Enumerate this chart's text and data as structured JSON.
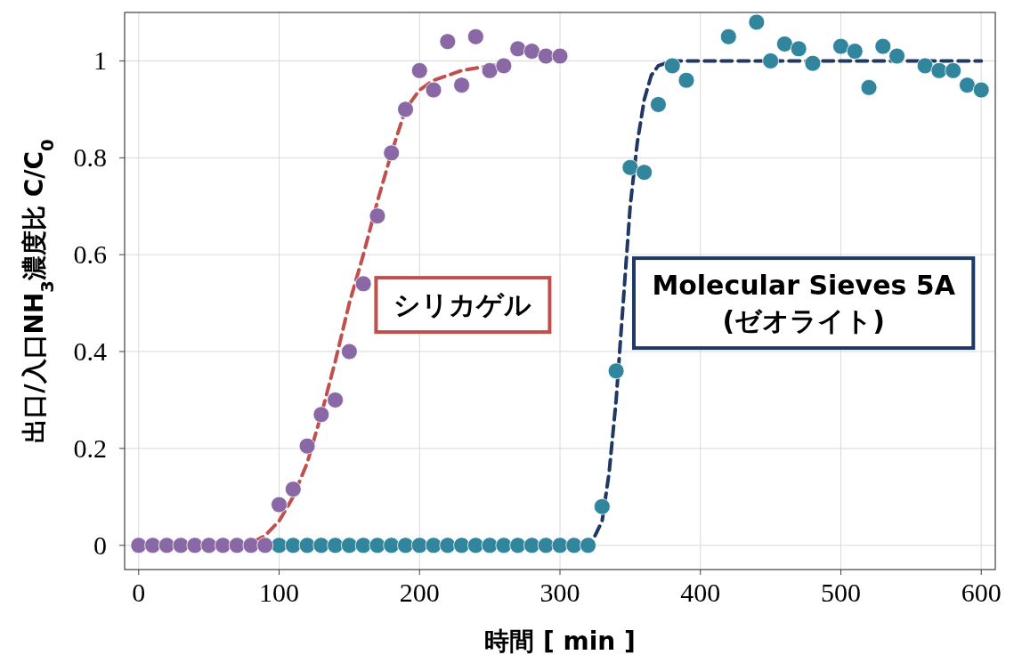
{
  "chart_data": {
    "type": "scatter",
    "xlabel": "時間 [ min ]",
    "ylabel": "出口/入口NH$_{3}$濃度比 C/C$_{0}$",
    "xlim": [
      -10,
      610
    ],
    "ylim": [
      -0.05,
      1.1
    ],
    "xticks": [
      0,
      100,
      200,
      300,
      400,
      500,
      600
    ],
    "yticks": [
      0,
      {
        "value": 0.2,
        "label": "0.2"
      },
      {
        "value": 0.4,
        "label": "0.4"
      },
      {
        "value": 0.6,
        "label": "0.6"
      },
      {
        "value": 0.8,
        "label": "0.8"
      },
      1
    ],
    "grid": true,
    "series": [
      {
        "type": "line",
        "name": "シリカゲル",
        "color": "#c0504d",
        "line_style": "dashed",
        "x": [
          70,
          80,
          90,
          100,
          110,
          120,
          130,
          140,
          150,
          160,
          170,
          180,
          190,
          200,
          210,
          230,
          260
        ],
        "values": [
          0,
          0.005,
          0.02,
          0.05,
          0.1,
          0.17,
          0.27,
          0.38,
          0.5,
          0.6,
          0.71,
          0.81,
          0.9,
          0.94,
          0.96,
          0.98,
          0.995
        ]
      },
      {
        "type": "line",
        "name": "Molecular Sieves 5A\n(ゼオライト)",
        "color": "#1f3864",
        "line_style": "dashed",
        "x": [
          315,
          325,
          330,
          335,
          340,
          345,
          350,
          355,
          360,
          365,
          370,
          380,
          600
        ],
        "values": [
          0,
          0.02,
          0.05,
          0.15,
          0.3,
          0.5,
          0.7,
          0.83,
          0.92,
          0.97,
          0.99,
          1.0,
          1.0
        ]
      },
      {
        "color": "#31859c",
        "marker": "circle",
        "x": [
          100,
          110,
          120,
          130,
          140,
          150,
          160,
          170,
          180,
          190,
          200,
          210,
          220,
          230,
          240,
          250,
          260,
          270,
          280,
          290,
          300,
          310,
          320,
          330,
          340,
          350,
          360,
          370,
          380,
          390,
          420,
          440,
          450,
          460,
          470,
          480,
          500,
          510,
          520,
          530,
          540,
          560,
          570,
          580,
          590,
          600
        ],
        "values": [
          0,
          0,
          0,
          0,
          0,
          0,
          0,
          0,
          0,
          0,
          0,
          0,
          0,
          0,
          0,
          0,
          0,
          0,
          0,
          0,
          0,
          0,
          0,
          0.08,
          0.36,
          0.78,
          0.77,
          0.91,
          0.99,
          0.96,
          1.05,
          1.08,
          1.0,
          1.035,
          1.025,
          0.995,
          1.03,
          1.02,
          0.945,
          1.03,
          1.01,
          0.99,
          0.98,
          0.98,
          0.95,
          0.94
        ]
      },
      {
        "color": "#8a68a6",
        "marker": "circle",
        "x": [
          0,
          10,
          20,
          30,
          40,
          50,
          60,
          70,
          80,
          90,
          100,
          110,
          120,
          130,
          140,
          150,
          160,
          170,
          180,
          190,
          200,
          210,
          220,
          230,
          240,
          250,
          260,
          270,
          280,
          290,
          300
        ],
        "values": [
          0,
          0,
          0,
          0,
          0,
          0,
          0,
          0,
          0,
          0,
          0.084,
          0.116,
          0.205,
          0.27,
          0.3,
          0.4,
          0.54,
          0.68,
          0.81,
          0.9,
          0.98,
          0.94,
          1.04,
          0.95,
          1.05,
          0.98,
          0.99,
          1.025,
          1.02,
          1.01,
          1.01
        ]
      }
    ]
  }
}
